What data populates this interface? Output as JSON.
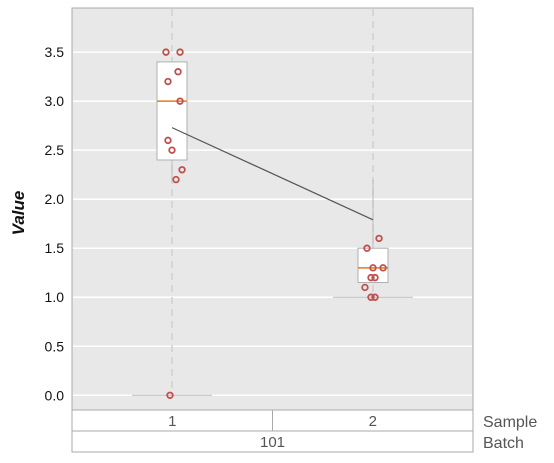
{
  "chart_data": {
    "type": "box",
    "ylabel": "Value",
    "ylim": [
      -0.15,
      3.95
    ],
    "yticks": [
      0.0,
      0.5,
      1.0,
      1.5,
      2.0,
      2.5,
      3.0,
      3.5
    ],
    "ytick_labels": [
      "0.0",
      "0.5",
      "1.0",
      "1.5",
      "2.0",
      "2.5",
      "3.0",
      "3.5"
    ],
    "grid": true,
    "categories": [
      "1",
      "2"
    ],
    "boxes": [
      {
        "name": "1",
        "q1": 2.4,
        "median": 3.0,
        "q3": 3.4,
        "whisker_low": 0.0,
        "whisker_high": 3.95,
        "mean": 2.73
      },
      {
        "name": "2",
        "q1": 1.15,
        "median": 1.3,
        "q3": 1.5,
        "whisker_low": 1.0,
        "whisker_high": 3.95,
        "mean": 1.79
      }
    ],
    "points": [
      {
        "box": 0,
        "offset": -0.03,
        "y": 3.5
      },
      {
        "box": 0,
        "offset": 0.04,
        "y": 3.5
      },
      {
        "box": 0,
        "offset": 0.03,
        "y": 3.3
      },
      {
        "box": 0,
        "offset": -0.02,
        "y": 3.2
      },
      {
        "box": 0,
        "offset": 0.04,
        "y": 3.0
      },
      {
        "box": 0,
        "offset": -0.02,
        "y": 2.6
      },
      {
        "box": 0,
        "offset": 0.0,
        "y": 2.5
      },
      {
        "box": 0,
        "offset": 0.05,
        "y": 2.3
      },
      {
        "box": 0,
        "offset": 0.02,
        "y": 2.2
      },
      {
        "box": 0,
        "offset": -0.01,
        "y": 0.0
      },
      {
        "box": 1,
        "offset": 0.03,
        "y": 1.6
      },
      {
        "box": 1,
        "offset": -0.03,
        "y": 1.5
      },
      {
        "box": 1,
        "offset": 0.0,
        "y": 1.3
      },
      {
        "box": 1,
        "offset": 0.05,
        "y": 1.3
      },
      {
        "box": 1,
        "offset": -0.01,
        "y": 1.2
      },
      {
        "box": 1,
        "offset": 0.01,
        "y": 1.2
      },
      {
        "box": 1,
        "offset": -0.04,
        "y": 1.1
      },
      {
        "box": 1,
        "offset": -0.01,
        "y": 1.0
      },
      {
        "box": 1,
        "offset": 0.01,
        "y": 1.0
      }
    ],
    "colors": {
      "panel": "#e8e8e8",
      "grid": "#ffffff",
      "median": "#e07b22",
      "points": "#c0504d",
      "mean_line": "#555555",
      "whisker_dash": "#cfcfcf"
    }
  },
  "variability_table": {
    "rows": [
      {
        "label": "Sample",
        "cells": [
          "1",
          "2"
        ]
      },
      {
        "label": "Batch",
        "cells": [
          "101"
        ]
      }
    ]
  }
}
